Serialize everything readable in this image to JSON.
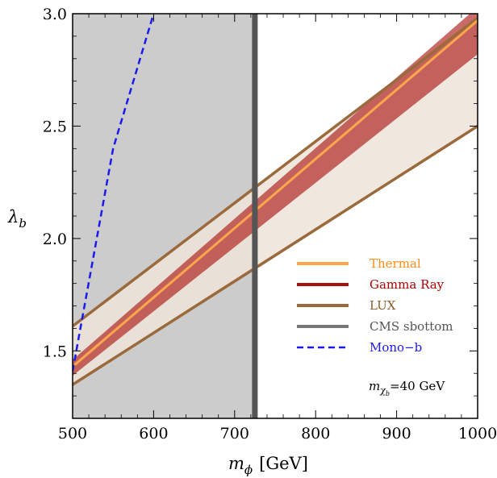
{
  "chart_data": {
    "type": "line",
    "xlabel_symbol": "m",
    "xlabel_sub": "ϕ",
    "xlabel_unit": "[GeV]",
    "ylabel_symbol": "λ",
    "ylabel_sub": "b",
    "xlim": [
      500,
      1000
    ],
    "ylim": [
      1.2,
      3.0
    ],
    "xticks": [
      500,
      600,
      700,
      800,
      900,
      1000
    ],
    "xtick_labels": [
      "500",
      "600",
      "700",
      "800",
      "900",
      "1000"
    ],
    "yticks": [
      1.5,
      2.0,
      2.5,
      3.0
    ],
    "ytick_labels": [
      "1.5",
      "2.0",
      "2.5",
      "3.0"
    ],
    "excluded_region": {
      "x": [
        500,
        725
      ],
      "color": "#cccccc"
    },
    "cms_line": {
      "x": 725,
      "color": "#555555"
    },
    "lux_band": {
      "upper": {
        "x": [
          500,
          1000
        ],
        "y": [
          1.61,
          2.98
        ]
      },
      "lower": {
        "x": [
          500,
          1000
        ],
        "y": [
          1.35,
          2.5
        ]
      },
      "color": "#9b6a3c",
      "fill": "#ede3d9"
    },
    "gamma_band": {
      "upper": {
        "x": [
          500,
          1000
        ],
        "y": [
          1.46,
          3.03
        ]
      },
      "lower": {
        "x": [
          500,
          1000
        ],
        "y": [
          1.39,
          2.82
        ]
      },
      "color": "#a8100b"
    },
    "thermal_line": {
      "x": [
        500,
        1000
      ],
      "y": [
        1.43,
        2.97
      ],
      "color": "#ffa64d"
    },
    "mono_b": {
      "x": [
        500,
        550,
        600
      ],
      "y": [
        1.41,
        2.4,
        3.0
      ],
      "color": "#1a1aee"
    },
    "legend": {
      "position": "right",
      "entries": [
        {
          "label": "Thermal",
          "color": "#ffa64d",
          "style": "solid",
          "text_color": "#ff8c1a"
        },
        {
          "label": "Gamma Ray",
          "color": "#a8100b",
          "style": "solid",
          "text_color": "#b00000"
        },
        {
          "label": "LUX",
          "color": "#9b6a3c",
          "style": "solid",
          "text_color": "#8a5a2b"
        },
        {
          "label": "CMS sbottom",
          "color": "#777777",
          "style": "solid",
          "text_color": "#555555"
        },
        {
          "label": "Mono−b",
          "color": "#1a1aee",
          "style": "dashed",
          "text_color": "#1a1aee"
        }
      ]
    },
    "annotation": {
      "symbol": "m",
      "sub": "χ",
      "subsub": "b",
      "text": "=40 GeV"
    }
  }
}
